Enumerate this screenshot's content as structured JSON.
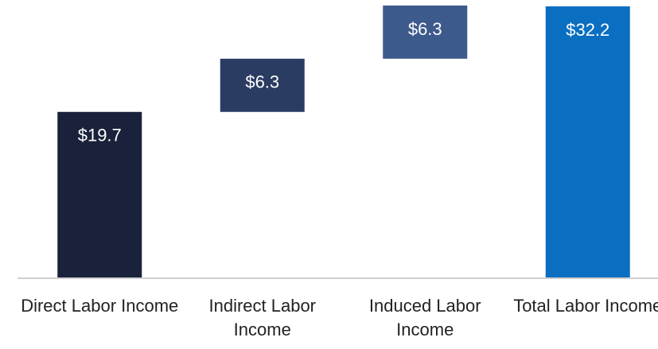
{
  "chart_data": {
    "type": "waterfall",
    "categories": [
      "Direct Labor Income",
      "Indirect Labor Income",
      "Induced Labor Income",
      "Total Labor Income"
    ],
    "values": [
      19.7,
      6.3,
      6.3,
      32.2
    ],
    "value_labels": [
      "$19.7",
      "$6.3",
      "$6.3",
      "$32.2"
    ],
    "total": [
      false,
      false,
      false,
      true
    ],
    "colors": [
      "#19223a",
      "#2b3c63",
      "#3d5a8c",
      "#0b6fc1"
    ],
    "ylim": [
      0,
      32.2
    ]
  }
}
